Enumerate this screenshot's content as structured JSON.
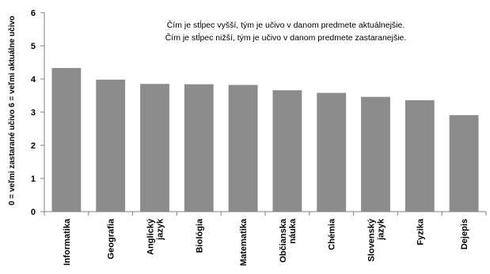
{
  "chart_data": {
    "type": "bar",
    "title": "",
    "xlabel": "",
    "ylabel": "0 = veľmi zastarané učivo   6 = veľmi aktuálne učivo",
    "ylim": [
      0,
      6
    ],
    "yticks": [
      0,
      1,
      2,
      3,
      4,
      5,
      6
    ],
    "grid": false,
    "legend": "none",
    "categories": [
      [
        "Informatika"
      ],
      [
        "Geografia"
      ],
      [
        "Anglický",
        "jazyk"
      ],
      [
        "Biológia"
      ],
      [
        "Matematika"
      ],
      [
        "Občianska",
        "náuka"
      ],
      [
        "Chémia"
      ],
      [
        "Slovenský",
        "jazyk"
      ],
      [
        "Fyzika"
      ],
      [
        "Dejepis"
      ]
    ],
    "values": [
      4.33,
      3.98,
      3.85,
      3.84,
      3.82,
      3.66,
      3.58,
      3.46,
      3.36,
      2.91
    ],
    "annotations": [
      "Čím je stĺpec vyšší, tým je učivo v danom predmete aktuálnejšie.",
      "Čím je stĺpec nižší, tým je učivo v danom predmete zastaranejšie."
    ],
    "colors": {
      "bar": "#8c8c8c",
      "axis": "#808080"
    }
  }
}
